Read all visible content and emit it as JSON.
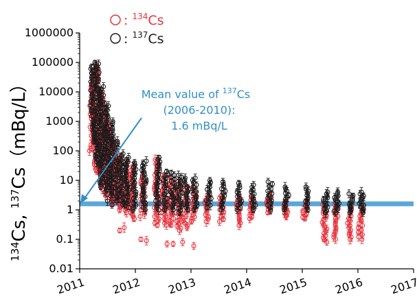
{
  "chart_data": {
    "type": "scatter",
    "y_scale": "log",
    "y_ticks": [
      "1000000",
      "100000",
      "10000",
      "1000",
      "100",
      "10",
      "1",
      "0.1",
      "0.01"
    ],
    "x_ticks": [
      "2011",
      "2012",
      "2013",
      "2014",
      "2015",
      "2016",
      "2017"
    ],
    "ylabel": {
      "iso1": "134",
      "el1": "Cs, ",
      "iso2": "137",
      "el2": "Cs",
      "unit": "（mBq/L）"
    },
    "xlim": [
      2011,
      2017
    ],
    "ylim": [
      0.01,
      1000000
    ],
    "grid": false,
    "legend_position": "top-left",
    "colors": {
      "cs134": "#e8323c",
      "cs137": "#1a1a1a",
      "mean_band": "#5aa7d8",
      "annotation": "#2f8fc9"
    },
    "legend": [
      {
        "marker_icon": "open-circle-icon",
        "sep": ": ",
        "iso": "134",
        "el": "Cs",
        "color": "#e8323c"
      },
      {
        "marker_icon": "open-circle-icon",
        "sep": ": ",
        "iso": "137",
        "el": "Cs",
        "color": "#1a1a1a"
      }
    ],
    "annotation": {
      "line1_pre": "Mean value of ",
      "line1_iso": "137",
      "line1_el": "Cs",
      "line2": "(2006-2010):",
      "line3": "1.6 mBq/L"
    },
    "mean_line": {
      "value": 1.6,
      "x_range": [
        2011,
        2017
      ]
    },
    "series": [
      {
        "name": "134Cs",
        "color": "#e8323c",
        "clusters": [
          {
            "x": 2011.22,
            "lo": 100,
            "hi": 50000
          },
          {
            "x": 2011.3,
            "lo": 20,
            "hi": 80000
          },
          {
            "x": 2011.38,
            "lo": 5,
            "hi": 10000
          },
          {
            "x": 2011.46,
            "lo": 3,
            "hi": 3000
          },
          {
            "x": 2011.54,
            "lo": 2,
            "hi": 800
          },
          {
            "x": 2011.62,
            "lo": 1.5,
            "hi": 200
          },
          {
            "x": 2011.72,
            "lo": 1,
            "hi": 60
          },
          {
            "x": 2011.82,
            "lo": 0.8,
            "hi": 40
          },
          {
            "x": 2011.94,
            "lo": 0.5,
            "hi": 30
          },
          {
            "x": 2012.13,
            "lo": 0.6,
            "hi": 15
          },
          {
            "x": 2012.38,
            "lo": 0.3,
            "hi": 50
          },
          {
            "x": 2012.52,
            "lo": 0.3,
            "hi": 15
          },
          {
            "x": 2012.65,
            "lo": 0.3,
            "hi": 12
          },
          {
            "x": 2012.78,
            "lo": 0.2,
            "hi": 8
          },
          {
            "x": 2012.9,
            "lo": 0.25,
            "hi": 6
          },
          {
            "x": 2013.05,
            "lo": 0.4,
            "hi": 6
          },
          {
            "x": 2013.28,
            "lo": 0.4,
            "hi": 3
          },
          {
            "x": 2013.55,
            "lo": 0.4,
            "hi": 3
          },
          {
            "x": 2013.85,
            "lo": 0.3,
            "hi": 3
          },
          {
            "x": 2014.1,
            "lo": 0.5,
            "hi": 2.5
          },
          {
            "x": 2014.4,
            "lo": 0.8,
            "hi": 3
          },
          {
            "x": 2014.7,
            "lo": 0.6,
            "hi": 2
          },
          {
            "x": 2015.05,
            "lo": 0.5,
            "hi": 2
          },
          {
            "x": 2015.4,
            "lo": 0.08,
            "hi": 1.5
          },
          {
            "x": 2015.6,
            "lo": 0.1,
            "hi": 1.5
          },
          {
            "x": 2015.85,
            "lo": 0.1,
            "hi": 1.5
          },
          {
            "x": 2016.05,
            "lo": 0.1,
            "hi": 1.5
          }
        ],
        "outliers": [
          {
            "x": 2011.72,
            "y": 0.2
          },
          {
            "x": 2011.8,
            "y": 0.25
          },
          {
            "x": 2012.1,
            "y": 0.1
          },
          {
            "x": 2012.2,
            "y": 0.09
          },
          {
            "x": 2012.57,
            "y": 0.07
          },
          {
            "x": 2012.68,
            "y": 0.07
          },
          {
            "x": 2012.85,
            "y": 0.08
          },
          {
            "x": 2013.05,
            "y": 0.06
          }
        ]
      },
      {
        "name": "137Cs",
        "color": "#1a1a1a",
        "clusters": [
          {
            "x": 2011.24,
            "lo": 200,
            "hi": 100000
          },
          {
            "x": 2011.32,
            "lo": 30,
            "hi": 90000
          },
          {
            "x": 2011.4,
            "lo": 6,
            "hi": 15000
          },
          {
            "x": 2011.48,
            "lo": 4,
            "hi": 4000
          },
          {
            "x": 2011.56,
            "lo": 3,
            "hi": 1000
          },
          {
            "x": 2011.65,
            "lo": 2,
            "hi": 250
          },
          {
            "x": 2011.75,
            "lo": 1.5,
            "hi": 80
          },
          {
            "x": 2011.85,
            "lo": 1.2,
            "hi": 60
          },
          {
            "x": 2011.97,
            "lo": 1,
            "hi": 40
          },
          {
            "x": 2012.16,
            "lo": 1,
            "hi": 45
          },
          {
            "x": 2012.4,
            "lo": 1,
            "hi": 60
          },
          {
            "x": 2012.55,
            "lo": 1,
            "hi": 20
          },
          {
            "x": 2012.68,
            "lo": 1,
            "hi": 18
          },
          {
            "x": 2012.8,
            "lo": 0.8,
            "hi": 15
          },
          {
            "x": 2012.92,
            "lo": 1,
            "hi": 12
          },
          {
            "x": 2013.07,
            "lo": 1,
            "hi": 12
          },
          {
            "x": 2013.32,
            "lo": 1.2,
            "hi": 10
          },
          {
            "x": 2013.58,
            "lo": 1,
            "hi": 9
          },
          {
            "x": 2013.87,
            "lo": 1,
            "hi": 8
          },
          {
            "x": 2014.12,
            "lo": 1,
            "hi": 7
          },
          {
            "x": 2014.42,
            "lo": 1,
            "hi": 9
          },
          {
            "x": 2014.72,
            "lo": 1,
            "hi": 6
          },
          {
            "x": 2015.07,
            "lo": 1,
            "hi": 6
          },
          {
            "x": 2015.42,
            "lo": 0.8,
            "hi": 4
          },
          {
            "x": 2015.62,
            "lo": 0.8,
            "hi": 4
          },
          {
            "x": 2015.87,
            "lo": 0.8,
            "hi": 3.5
          },
          {
            "x": 2016.07,
            "lo": 0.8,
            "hi": 4
          }
        ],
        "outliers": [
          {
            "x": 2011.5,
            "y": 2
          },
          {
            "x": 2011.58,
            "y": 1.5
          }
        ]
      }
    ]
  }
}
